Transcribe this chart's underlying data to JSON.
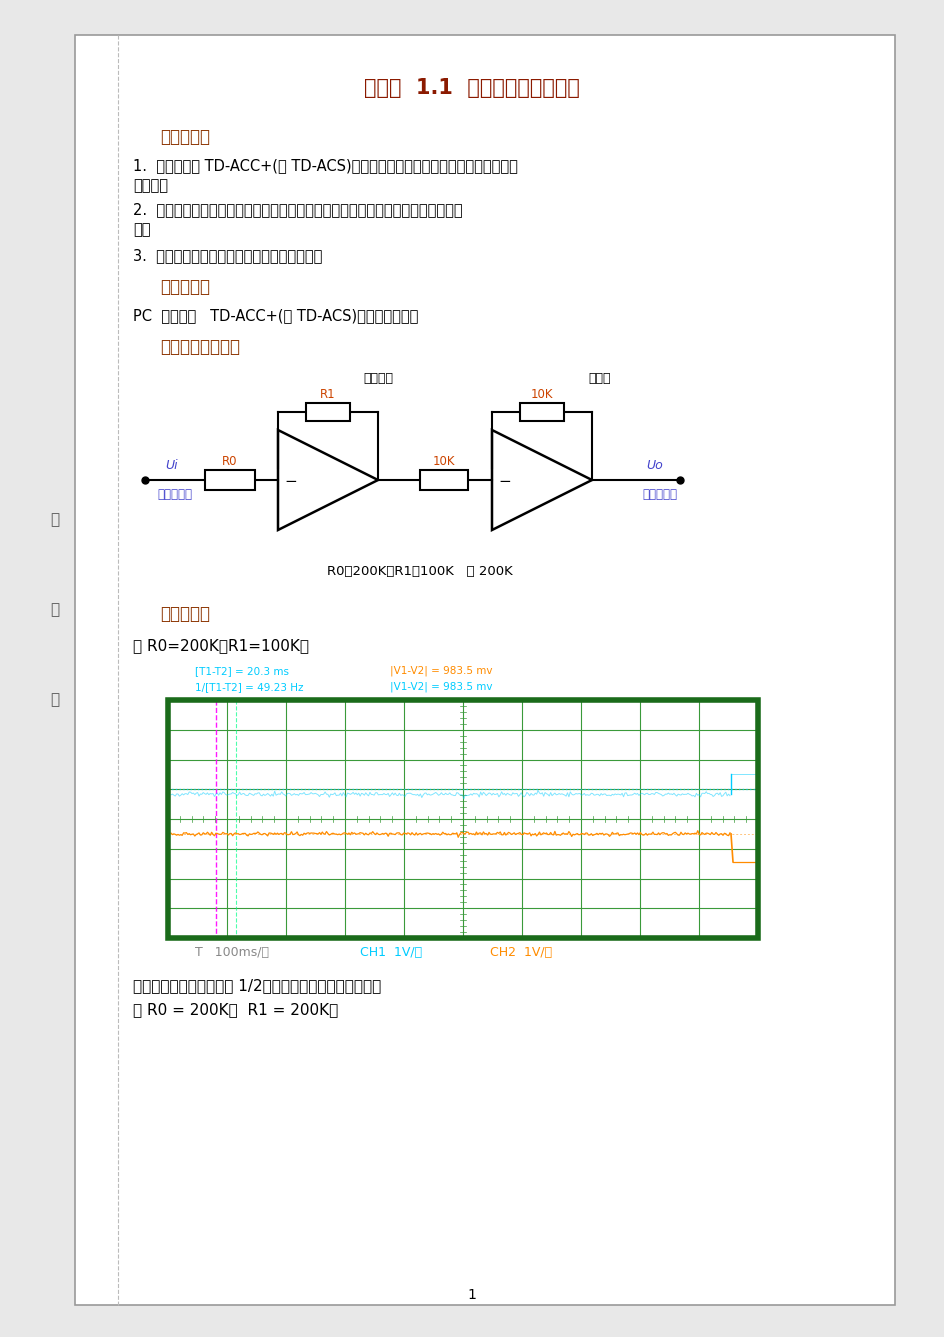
{
  "page_bg": "#e8e8e8",
  "paper_bg": "#ffffff",
  "paper_border": "#999999",
  "title": "实验一  1.1  典型环节的时域分析",
  "title_color": "#8b1a00",
  "title_fontsize": 15,
  "section_color": "#8b3300",
  "body_color": "#000000",
  "body_fontsize": 11,
  "side_labels": [
    "装",
    "订",
    "线"
  ],
  "sections": {
    "aim_title": "实验目的：",
    "aim1a": "1.  熟悉并掌握 TD-ACC+(或 TD-ACS)设备的使用方法及各典型环节模拟电路的构",
    "aim1b": "成方法。",
    "aim2a": "2.  熟悉各种典型环节的理想阶跃响应曲线和实际阶跃响应曲线。对比差异、分析原",
    "aim2b": "因。",
    "aim3": "3.  了解参数变化对典型环节动态特性的影响。",
    "equip_title": "实验设备：",
    "equip": "PC  机一台，   TD-ACC+(或 TD-ACS)实验系统一套。",
    "circuit_title": "模拟电路图如下：",
    "circuit_label1": "比例环节",
    "circuit_label2": "反相器",
    "circuit_label_ui": "Ui",
    "circuit_label_r0": "R0",
    "circuit_label_r1": "R1",
    "circuit_label_10k1": "10K",
    "circuit_label_10k2": "10K",
    "circuit_label_input": "信号输入端",
    "circuit_label_uo": "Uo",
    "circuit_label_output": "输出测量端",
    "circuit_formula": "R0＝200K；R1＝100K   或 200K",
    "result_title": "实验结果：",
    "result_cond": "当 R0=200K；R1=100K：",
    "osc_info1": "[T1-T2] = 20.3 ms",
    "osc_info2": "1/[T1-T2] = 49.23 Hz",
    "osc_info3": "|V1-V2| = 983.5 mv",
    "osc_info4": "|V1-V2| = 983.5 mv",
    "osc_time": "T   100ms/格",
    "osc_ch1": "CH1  1V/格",
    "osc_ch2": "CH2  1V/格",
    "result_text1": "输出电压约为输入电压的 1/2，误差范围内满足理论波形，",
    "result_text2": "当 R0 = 200K；  R1 = 200K。",
    "page_num": "1"
  },
  "osc_border": "#1a6b1a",
  "osc_grid_major": "#3a9a3a",
  "osc_grid_minor": "#c0d8c0",
  "osc_ch1_color": "#00ccff",
  "osc_ch2_color": "#ff8c00",
  "osc_cursor1_color": "#ff00ff",
  "osc_cursor2_color": "#00ff88",
  "label_blue": "#4444cc",
  "label_orange": "#cc4400"
}
